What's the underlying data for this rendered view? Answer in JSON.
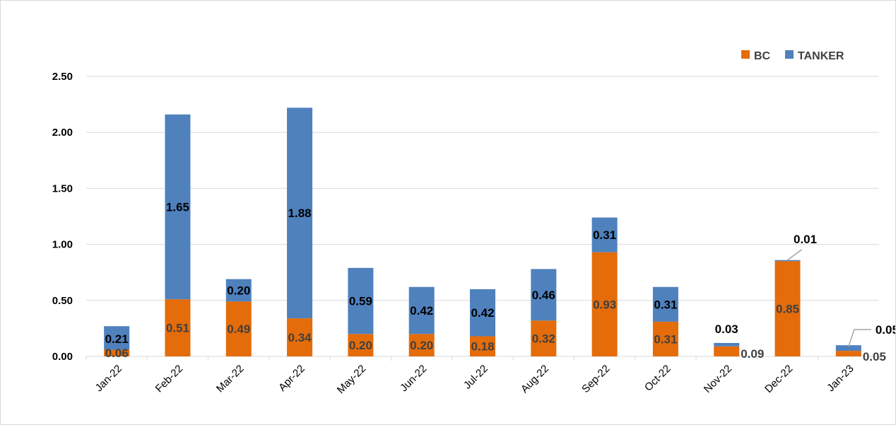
{
  "chart_data": {
    "type": "bar",
    "stacked": true,
    "categories": [
      "Jan-22",
      "Feb-22",
      "Mar-22",
      "Apr-22",
      "May-22",
      "Jun-22",
      "Jul-22",
      "Aug-22",
      "Sep-22",
      "Oct-22",
      "Nov-22",
      "Dec-22",
      "Jan-23"
    ],
    "series": [
      {
        "name": "BC",
        "color": "#E46C0A",
        "values": [
          0.06,
          0.51,
          0.49,
          0.34,
          0.2,
          0.2,
          0.18,
          0.32,
          0.93,
          0.31,
          0.09,
          0.85,
          0.05
        ]
      },
      {
        "name": "TANKER",
        "color": "#4F81BD",
        "values": [
          0.21,
          1.65,
          0.2,
          1.88,
          0.59,
          0.42,
          0.42,
          0.46,
          0.31,
          0.31,
          0.03,
          0.01,
          0.05
        ]
      }
    ],
    "ylim": [
      0,
      2.5
    ],
    "yticks": [
      "0.00",
      "0.50",
      "1.00",
      "1.50",
      "2.00",
      "2.50"
    ],
    "grid": true,
    "legend": "top-right",
    "title": "",
    "xlabel": "",
    "ylabel": ""
  }
}
